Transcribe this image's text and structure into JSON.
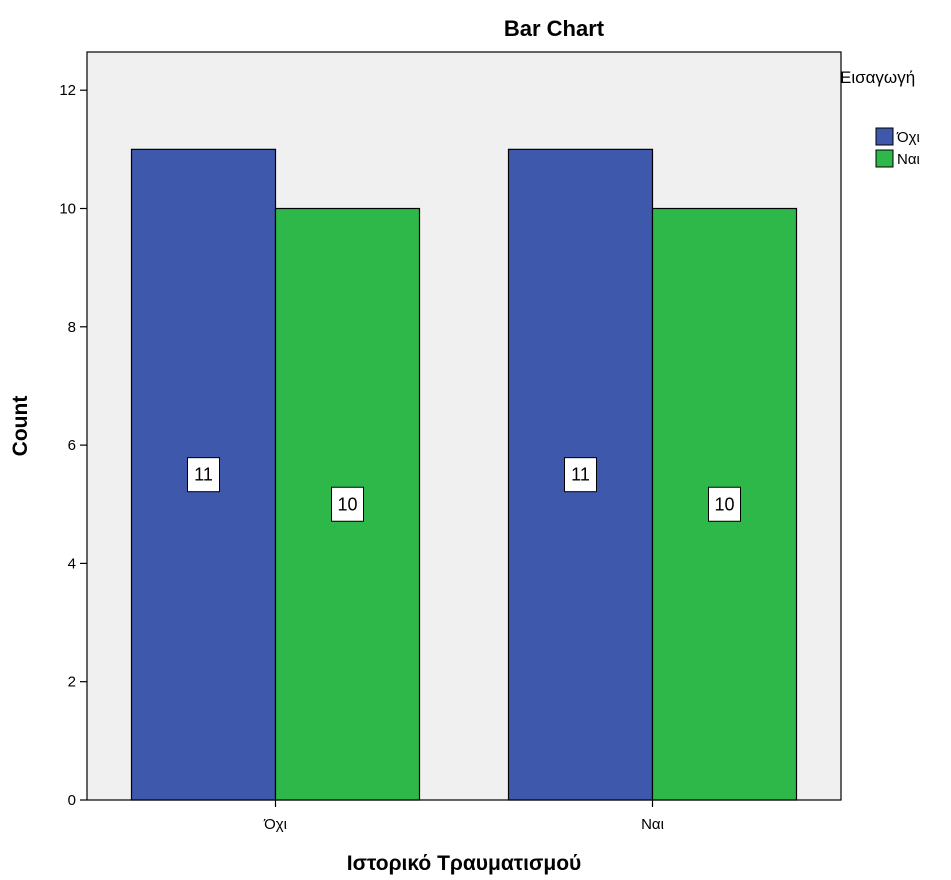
{
  "chart_data": {
    "type": "bar",
    "title": "Bar Chart",
    "xlabel": "Ιστορικό Τραυματισμού",
    "ylabel": "Count",
    "categories": [
      "Όχι",
      "Ναι"
    ],
    "series": [
      {
        "name": "Όχι",
        "color": "#3e58ac",
        "values": [
          11,
          11
        ]
      },
      {
        "name": "Ναι",
        "color": "#2fb84a",
        "values": [
          10,
          10
        ]
      }
    ],
    "ylim": [
      0,
      12.5
    ],
    "yticks": [
      0,
      2,
      4,
      6,
      8,
      10,
      12
    ],
    "legend": {
      "title": "Εισαγωγή",
      "position": "top-right"
    },
    "data_labels": true,
    "grid": false,
    "plot_background": "#f0f0f0"
  }
}
